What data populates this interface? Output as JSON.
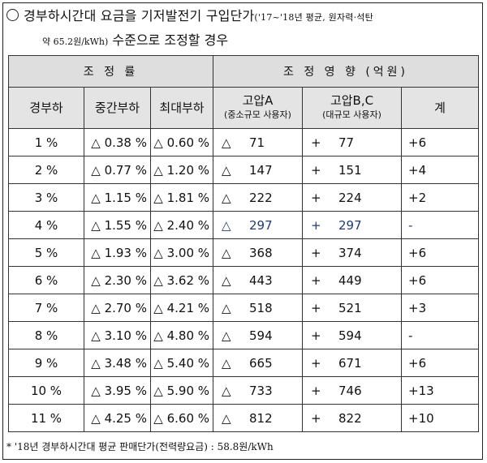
{
  "heading": {
    "line1_main": "경부하시간대 요금을 기저발전기 구입단가",
    "line1_small": "('17~'18년 평균, 원자력·석탄",
    "line2_small_a": "약 65.2원/kWh)",
    "line2_main": " 수준으로 조정할 경우"
  },
  "table": {
    "group_left": "조 정 률",
    "group_right": "조 정 영 향 (억원)",
    "col_light": "경부하",
    "col_mid": "중간부하",
    "col_peak": "최대부하",
    "col_hva": "고압A",
    "col_hva_sub": "(중소규모 사용자)",
    "col_hvbc": "고압B,C",
    "col_hvbc_sub": "(대규모 사용자)",
    "col_total": "계",
    "rows": [
      {
        "light": "1 %",
        "mid": "△ 0.38 %",
        "peak": "△ 0.60 %",
        "a_sym": "△",
        "a_val": "71",
        "b_sym": "+",
        "b_val": "77",
        "total": "+6"
      },
      {
        "light": "2 %",
        "mid": "△ 0.77 %",
        "peak": "△ 1.20 %",
        "a_sym": "△",
        "a_val": "147",
        "b_sym": "+",
        "b_val": "151",
        "total": "+4"
      },
      {
        "light": "3 %",
        "mid": "△ 1.15 %",
        "peak": "△ 1.81 %",
        "a_sym": "△",
        "a_val": "222",
        "b_sym": "+",
        "b_val": "224",
        "total": "+2"
      },
      {
        "light": "4 %",
        "mid": "△ 1.55 %",
        "peak": "△ 2.40 %",
        "a_sym": "△",
        "a_val": "297",
        "b_sym": "+",
        "b_val": "297",
        "total": "-"
      },
      {
        "light": "5 %",
        "mid": "△ 1.93 %",
        "peak": "△ 3.00 %",
        "a_sym": "△",
        "a_val": "368",
        "b_sym": "+",
        "b_val": "374",
        "total": "+6"
      },
      {
        "light": "6 %",
        "mid": "△ 2.30 %",
        "peak": "△ 3.62 %",
        "a_sym": "△",
        "a_val": "443",
        "b_sym": "+",
        "b_val": "449",
        "total": "+6"
      },
      {
        "light": "7 %",
        "mid": "△ 2.70 %",
        "peak": "△ 4.21 %",
        "a_sym": "△",
        "a_val": "518",
        "b_sym": "+",
        "b_val": "521",
        "total": "+3"
      },
      {
        "light": "8 %",
        "mid": "△ 3.10 %",
        "peak": "△ 4.80 %",
        "a_sym": "△",
        "a_val": "594",
        "b_sym": "+",
        "b_val": "594",
        "total": "-"
      },
      {
        "light": "9 %",
        "mid": "△ 3.48 %",
        "peak": "△ 5.40 %",
        "a_sym": "△",
        "a_val": "665",
        "b_sym": "+",
        "b_val": "671",
        "total": "+6"
      },
      {
        "light": "10 %",
        "mid": "△ 3.95 %",
        "peak": "△ 5.90 %",
        "a_sym": "△",
        "a_val": "733",
        "b_sym": "+",
        "b_val": "746",
        "total": "+13"
      },
      {
        "light": "11 %",
        "mid": "△ 4.25 %",
        "peak": "△ 6.60 %",
        "a_sym": "△",
        "a_val": "812",
        "b_sym": "+",
        "b_val": "822",
        "total": "+10"
      }
    ]
  },
  "note": "* '18년 경부하시간대 평균 판매단가(전력량요금) : 58.8원/kWh",
  "colors": {
    "header_bg": "#dedede",
    "highlight_text": "#1f3c78"
  }
}
